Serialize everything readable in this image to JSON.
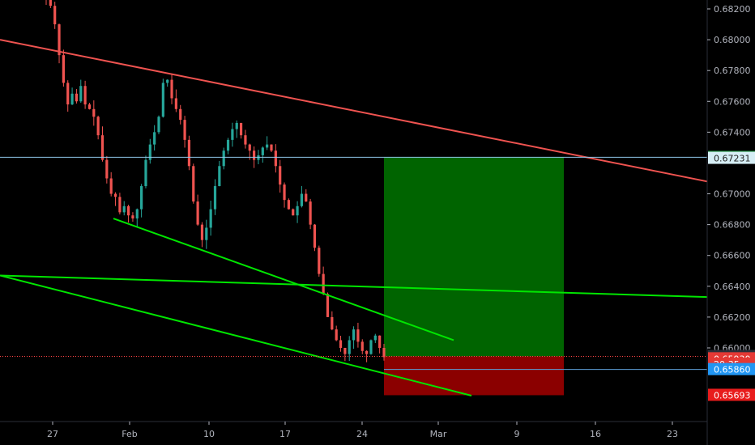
{
  "chart_data": {
    "type": "candlestick",
    "colors": {
      "background": "#000000",
      "up": "#26a69a",
      "down": "#ef5350",
      "axis_text": "#b2b5be",
      "trendline_resistance": "#ef5350",
      "trendline_support": "#00e600",
      "profit_zone": "#006400",
      "loss_zone": "#8b0000",
      "horizontal_line": "#5b9bd5",
      "current_price_line": "#ff4444"
    },
    "y_axis": {
      "ticks": [
        "0.68200",
        "0.68000",
        "0.67800",
        "0.67600",
        "0.67400",
        "0.67000",
        "0.66800",
        "0.66600",
        "0.66400",
        "0.66200",
        "0.66000"
      ],
      "ylim": [
        0.6557,
        0.6827
      ]
    },
    "x_axis": {
      "ticks": [
        "27",
        "Feb",
        "10",
        "17",
        "24",
        "Mar",
        "9",
        "16",
        "23"
      ]
    },
    "candles_close_path": [
      0.6826,
      0.6822,
      0.681,
      0.679,
      0.6772,
      0.6758,
      0.6765,
      0.676,
      0.677,
      0.6758,
      0.6755,
      0.675,
      0.6738,
      0.6722,
      0.671,
      0.67,
      0.6698,
      0.6688,
      0.6692,
      0.6686,
      0.6684,
      0.669,
      0.6705,
      0.6722,
      0.6732,
      0.674,
      0.675,
      0.6772,
      0.6774,
      0.6762,
      0.6755,
      0.6748,
      0.6735,
      0.6718,
      0.6695,
      0.668,
      0.667,
      0.6678,
      0.669,
      0.6705,
      0.6718,
      0.6728,
      0.6735,
      0.6742,
      0.6746,
      0.6738,
      0.6732,
      0.6728,
      0.6722,
      0.6725,
      0.673,
      0.6732,
      0.6728,
      0.6718,
      0.6706,
      0.6696,
      0.669,
      0.6686,
      0.6692,
      0.67,
      0.6695,
      0.668,
      0.6665,
      0.6648,
      0.6635,
      0.662,
      0.6612,
      0.6605,
      0.66,
      0.6596,
      0.6605,
      0.6612,
      0.6604,
      0.6598,
      0.6596,
      0.6605,
      0.6608,
      0.66,
      0.6594
    ],
    "trendlines": [
      {
        "role": "resistance",
        "x": [
          "27",
          "23"
        ],
        "y": [
          0.68,
          0.6708
        ]
      },
      {
        "role": "support-upper",
        "x": [
          "Feb",
          "Mar"
        ],
        "y": [
          0.6684,
          0.6605
        ]
      },
      {
        "role": "support-horizontal",
        "x": [
          "27",
          "23"
        ],
        "y": [
          0.6647,
          0.6633
        ]
      },
      {
        "role": "support-lower",
        "x": [
          "27",
          "Mar"
        ],
        "y": [
          0.6647,
          0.6569
        ]
      }
    ],
    "position": {
      "entry": 0.65945,
      "target": 0.67237,
      "stop": 0.65693
    },
    "price_labels": [
      {
        "text": "0.67237",
        "bg": "#1b8a3a",
        "fg": "#ffffff",
        "value": 0.67237
      },
      {
        "text": "0.67231",
        "bg": "#d6eef5",
        "fg": "#222222",
        "value": 0.67231
      },
      {
        "text": "0.65945",
        "bg": "#2a2e39",
        "fg": "#ffffff",
        "value": 0.65945
      },
      {
        "text": "0.65930",
        "bg": "#e53935",
        "fg": "#ffffff",
        "value": 0.6593
      },
      {
        "text": "20:35",
        "bg": "#e53935",
        "fg": "#ffffff",
        "value": 0.65895
      },
      {
        "text": "0.65860",
        "bg": "#2196f3",
        "fg": "#ffffff",
        "value": 0.6586
      },
      {
        "text": "0.65693",
        "bg": "#e81c1c",
        "fg": "#ffffff",
        "value": 0.65693
      }
    ]
  }
}
